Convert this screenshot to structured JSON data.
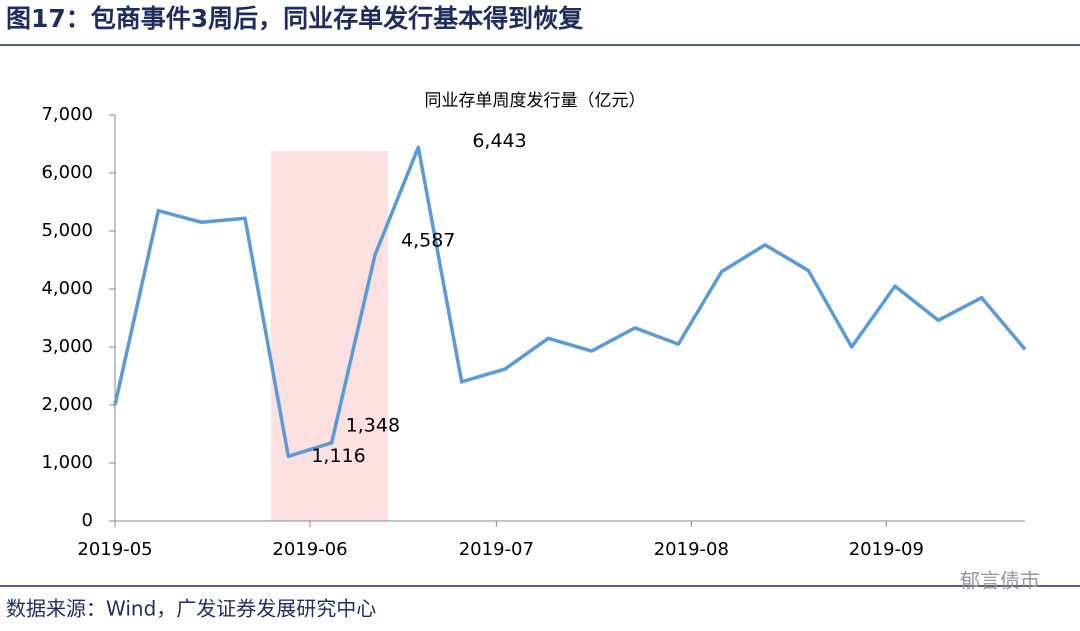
{
  "header": {
    "title": "图17：包商事件3周后，同业存单发行基本得到恢复"
  },
  "chart_data": {
    "type": "line",
    "title": "同业存单周度发行量（亿元）",
    "x": [
      0,
      1,
      2,
      3,
      4,
      5,
      6,
      7,
      8,
      9,
      10,
      11,
      12,
      13,
      14,
      15,
      16,
      17,
      18,
      19,
      20,
      21
    ],
    "xlim": [
      0,
      21
    ],
    "xticks": [
      {
        "value": 0,
        "label": "2019-05"
      },
      {
        "value": 4.5,
        "label": "2019-06"
      },
      {
        "value": 8.8,
        "label": "2019-07"
      },
      {
        "value": 13.3,
        "label": "2019-08"
      },
      {
        "value": 17.8,
        "label": "2019-09"
      }
    ],
    "series": [
      {
        "name": "同业存单周度发行量",
        "color": "#5b9bd5",
        "values": [
          2000,
          5350,
          5150,
          5220,
          1116,
          1348,
          4587,
          6443,
          2400,
          2620,
          3150,
          2930,
          3330,
          3050,
          4300,
          4760,
          4320,
          3000,
          4050,
          3460,
          3850,
          2960
        ],
        "value_labels": [
          null,
          null,
          null,
          null,
          "1,116",
          "1,348",
          "4,587",
          "6,443",
          null,
          null,
          null,
          null,
          null,
          null,
          null,
          null,
          null,
          null,
          null,
          null,
          null,
          null
        ]
      }
    ],
    "ylim": [
      0,
      7000
    ],
    "yticks": [
      0,
      {
        "value": 1000,
        "label": "1,000"
      },
      {
        "value": 2000,
        "label": "2,000"
      },
      {
        "value": 3000,
        "label": "3,000"
      },
      {
        "value": 4000,
        "label": "4,000"
      },
      {
        "value": 5000,
        "label": "5,000"
      },
      {
        "value": 6000,
        "label": "6,000"
      },
      {
        "value": 7000,
        "label": "7,000"
      }
    ],
    "highlight": {
      "x": [
        3.6,
        6.3
      ],
      "y": [
        0,
        6380
      ],
      "color": "#fde0e0"
    }
  },
  "footer": {
    "source": "数据来源：Wind，广发证券发展研究中心",
    "watermark": "郁言债市"
  }
}
